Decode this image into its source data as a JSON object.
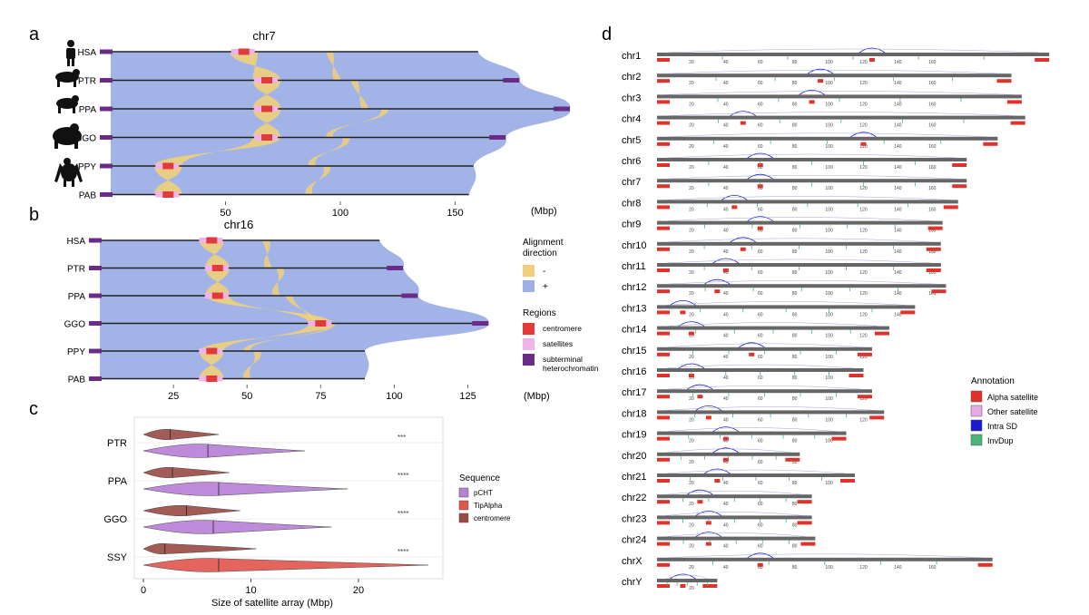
{
  "panel_a": {
    "label": "a",
    "title": "chr7",
    "species": [
      "HSA",
      "PTR",
      "PPA",
      "GGO",
      "PPY",
      "PAB"
    ],
    "ticks": [
      50,
      100,
      150
    ],
    "unit": "(Mbp)",
    "xlim": [
      0,
      200
    ],
    "lengths": [
      160,
      178,
      200,
      172,
      158,
      156
    ],
    "centromere_pos": [
      58,
      68,
      68,
      68,
      25,
      25
    ]
  },
  "panel_b": {
    "label": "b",
    "title": "chr16",
    "species": [
      "HSA",
      "PTR",
      "PPA",
      "GGO",
      "PPY",
      "PAB"
    ],
    "ticks": [
      25,
      50,
      75,
      100,
      125
    ],
    "unit": "(Mbp)",
    "xlim": [
      0,
      135
    ],
    "lengths": [
      95,
      103,
      108,
      132,
      90,
      90
    ],
    "centromere_pos": [
      38,
      40,
      40,
      75,
      38,
      38
    ],
    "legend": {
      "direction_title": "Alignment\ndirection",
      "direction_items": [
        {
          "label": "-",
          "color": "#f0cf7a"
        },
        {
          "label": "+",
          "color": "#9dafe6"
        }
      ],
      "regions_title": "Regions",
      "regions_items": [
        {
          "label": "centromere",
          "color": "#e23a3a"
        },
        {
          "label": "satellites",
          "color": "#f0b4ec"
        },
        {
          "label": "subterminal\nheterochromatin",
          "color": "#6a2c86"
        }
      ]
    }
  },
  "chart_data": [
    {
      "type": "violin",
      "panel": "c",
      "label": "c",
      "categories": [
        "PTR",
        "PPA",
        "GGO",
        "SSY"
      ],
      "xlabel": "Size of satellite array (Mbp)",
      "xlim": [
        0,
        27
      ],
      "xticks": [
        0,
        10,
        20
      ],
      "legend_title": "Sequence",
      "series": [
        {
          "name": "pCHT",
          "color": "#b77fd6",
          "medians": [
            6.0,
            7.0,
            6.5,
            null
          ],
          "max": [
            15,
            19,
            17.5,
            null
          ]
        },
        {
          "name": "TipAlpha",
          "color": "#e0554c",
          "medians": [
            null,
            null,
            null,
            7.0
          ],
          "max": [
            null,
            null,
            null,
            26.5
          ]
        },
        {
          "name": "centromere",
          "color": "#9a4a44",
          "medians": [
            2.5,
            2.7,
            4.0,
            2.0
          ],
          "max": [
            7,
            8,
            9,
            10.5
          ]
        }
      ],
      "significance": [
        "***",
        "****",
        "****",
        "****"
      ]
    },
    {
      "type": "ideogram",
      "panel": "d",
      "label": "d",
      "chromosomes": [
        "chr1",
        "chr2",
        "chr3",
        "chr4",
        "chr5",
        "chr6",
        "chr7",
        "chr8",
        "chr9",
        "chr10",
        "chr11",
        "chr12",
        "chr13",
        "chr14",
        "chr15",
        "chr16",
        "chr17",
        "chr18",
        "chr19",
        "chr20",
        "chr21",
        "chr22",
        "chr23",
        "chr24",
        "chrX",
        "chrY"
      ],
      "lengths_mbp": [
        228,
        206,
        212,
        214,
        198,
        180,
        180,
        175,
        166,
        165,
        165,
        168,
        150,
        135,
        125,
        120,
        125,
        132,
        110,
        83,
        115,
        90,
        90,
        92,
        195,
        35
      ],
      "centromere_mbp": [
        125,
        95,
        90,
        50,
        120,
        60,
        60,
        45,
        60,
        50,
        40,
        35,
        15,
        20,
        55,
        20,
        25,
        30,
        40,
        40,
        35,
        25,
        30,
        30,
        60,
        15
      ],
      "axis_ticks": [
        20,
        40,
        60,
        80,
        100,
        120,
        140,
        160
      ],
      "legend_title": "Annotation",
      "legend": [
        {
          "label": "Alpha satellite",
          "color": "#e0312a"
        },
        {
          "label": "Other satellite",
          "color": "#e7a9e3"
        },
        {
          "label": "Intra SD",
          "color": "#1a1acf"
        },
        {
          "label": "InvDup",
          "color": "#4bb478"
        }
      ]
    }
  ]
}
